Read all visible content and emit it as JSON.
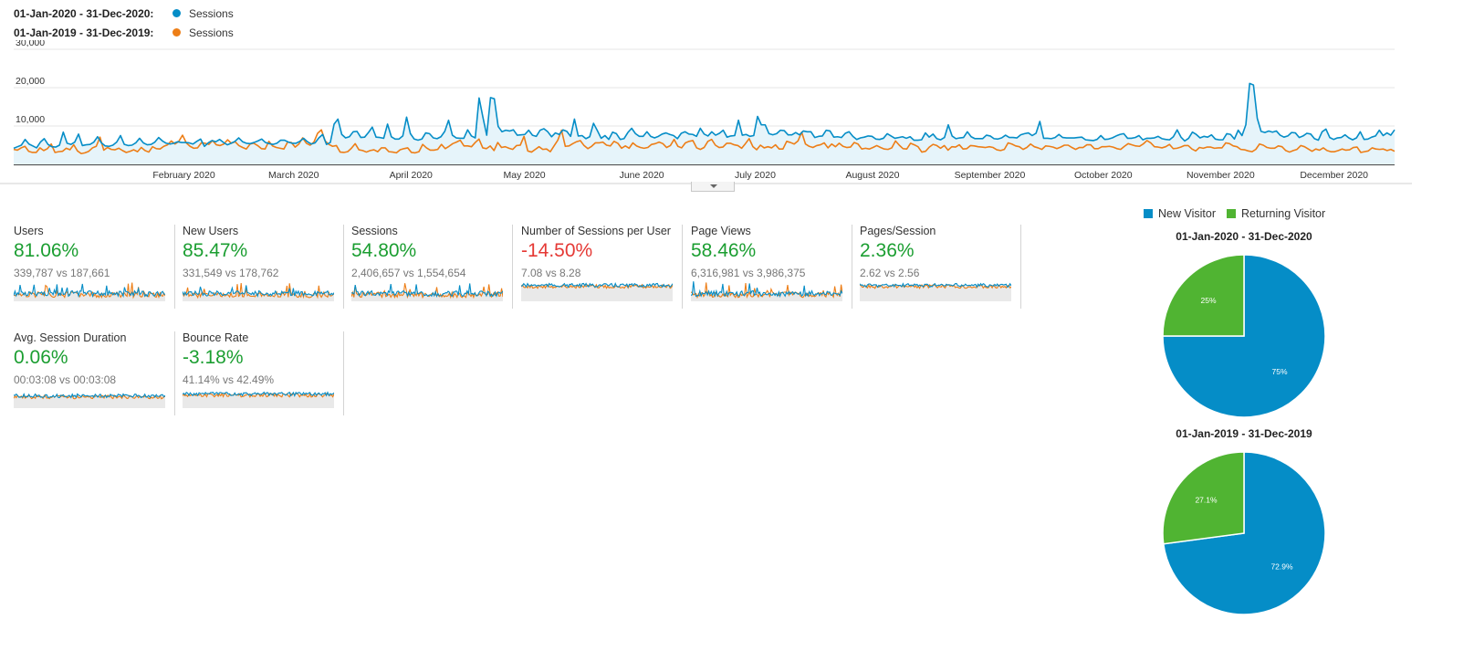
{
  "legend": [
    {
      "range": "01-Jan-2020 - 31-Dec-2020:",
      "metric": "Sessions",
      "color": "#058dc7"
    },
    {
      "range": "01-Jan-2019 - 31-Dec-2019:",
      "metric": "Sessions",
      "color": "#ed7e17"
    }
  ],
  "chart_data": {
    "type": "line",
    "title": "",
    "ylabel": "",
    "ylim": [
      0,
      30000
    ],
    "yticks": [
      "30,000",
      "20,000",
      "10,000"
    ],
    "x_tick_labels": [
      "February 2020",
      "March 2020",
      "April 2020",
      "May 2020",
      "June 2020",
      "July 2020",
      "August 2020",
      "September 2020",
      "October 2020",
      "November 2020",
      "December 2020"
    ],
    "series": [
      {
        "name": "01-Jan-2020 - 31-Dec-2020: Sessions",
        "color": "#058dc7",
        "values": [
          4200,
          4600,
          5000,
          6500,
          5300,
          4800,
          4300,
          5800,
          6700,
          5200,
          4600,
          4500,
          5000,
          8400,
          5500,
          5200,
          5800,
          7900,
          4900,
          5100,
          5200,
          5800,
          7200,
          5600,
          4800,
          4700,
          5000,
          5800,
          7500,
          5200,
          4900,
          5000,
          5600,
          6800,
          5600,
          5100,
          5200,
          5800,
          7000,
          6100,
          5500,
          5300,
          5500,
          5900,
          5700,
          5700,
          5600,
          5300,
          6000,
          6600,
          4700,
          5600,
          6200,
          5900,
          6500,
          5700,
          5100,
          5500,
          6000,
          6900,
          5900,
          5500,
          5400,
          5700,
          6100,
          6600,
          5700,
          5400,
          5200,
          5500,
          6300,
          6300,
          5800,
          5500,
          5500,
          6000,
          6800,
          5900,
          5300,
          5600,
          6900,
          7800,
          5200,
          5700,
          10500,
          11800,
          7800,
          6900,
          7200,
          8500,
          8600,
          7000,
          7100,
          8300,
          9700,
          7100,
          7000,
          6800,
          10500,
          7200,
          6600,
          6600,
          7400,
          12300,
          8000,
          6600,
          6300,
          6600,
          8200,
          8000,
          6900,
          6700,
          7200,
          8600,
          11500,
          7600,
          6900,
          6800,
          6800,
          9000,
          7400,
          6900,
          17300,
          12300,
          7600,
          17400,
          17100,
          9900,
          8500,
          8900,
          8700,
          9000,
          7600,
          7700,
          7800,
          8900,
          7600,
          7300,
          8900,
          9300,
          8500,
          7200,
          8200,
          7800,
          9000,
          8600,
          7300,
          11800,
          7400,
          7500,
          6700,
          7200,
          10700,
          8800,
          6800,
          7500,
          6500,
          8400,
          8000,
          6500,
          6700,
          8300,
          9400,
          8000,
          7300,
          7300,
          8500,
          7300,
          6900,
          7300,
          7900,
          8200,
          7800,
          7500,
          6700,
          8100,
          8500,
          7900,
          7800,
          7300,
          9400,
          7900,
          7400,
          8500,
          7600,
          8100,
          8900,
          7100,
          7400,
          7500,
          11500,
          7600,
          7800,
          7300,
          7500,
          12500,
          10300,
          10300,
          8000,
          7700,
          8000,
          8900,
          8800,
          7700,
          7700,
          8300,
          7700,
          8700,
          8500,
          8500,
          7000,
          7300,
          7400,
          8900,
          8700,
          7100,
          7200,
          7000,
          8100,
          8500,
          7300,
          6500,
          6900,
          7100,
          7400,
          7300,
          6600,
          6500,
          6800,
          8000,
          7400,
          6800,
          7000,
          7200,
          6800,
          7200,
          6300,
          6300,
          6400,
          8200,
          7100,
          7900,
          6700,
          6400,
          7000,
          10300,
          7400,
          6700,
          6900,
          7000,
          8500,
          7200,
          6700,
          6700,
          6700,
          7600,
          7400,
          6700,
          6600,
          6900,
          7600,
          7000,
          7000,
          6900,
          7700,
          8000,
          8200,
          7500,
          8100,
          11200,
          6800,
          6800,
          6700,
          7000,
          7800,
          7000,
          6900,
          6900,
          6900,
          7000,
          7100,
          6400,
          6300,
          6200,
          6500,
          7500,
          6500,
          6600,
          6900,
          7400,
          7800,
          8000,
          6800,
          6800,
          7000,
          7500,
          6400,
          6800,
          6800,
          6900,
          7300,
          6700,
          6500,
          6400,
          7200,
          9000,
          7100,
          6100,
          6800,
          8400,
          7800,
          6900,
          7300,
          7100,
          7700,
          6600,
          6400,
          6400,
          8000,
          7800,
          6600,
          8900,
          7500,
          10300,
          21100,
          20700,
          12000,
          8600,
          8300,
          8700,
          8400,
          8700,
          7600,
          7100,
          7400,
          8300,
          8200,
          7000,
          7400,
          8100,
          7900,
          6700,
          6300,
          8500,
          9200,
          7000,
          6500,
          6900,
          7000,
          7700,
          6900,
          6400,
          6900,
          8500,
          6500,
          6600,
          7100,
          7400,
          8900,
          7500,
          8200,
          7600,
          9000
        ]
      },
      {
        "name": "01-Jan-2019 - 31-Dec-2019: Sessions",
        "color": "#ed7e17",
        "values": [
          3900,
          3700,
          4300,
          4700,
          3400,
          3100,
          3100,
          4300,
          3600,
          4100,
          5300,
          3100,
          3300,
          3400,
          4200,
          3800,
          5100,
          3500,
          2800,
          3000,
          3400,
          4300,
          4700,
          7100,
          3700,
          4400,
          3900,
          3800,
          4200,
          3600,
          3100,
          3400,
          3800,
          3300,
          4400,
          3600,
          3200,
          4600,
          4100,
          4000,
          4700,
          5100,
          6100,
          5300,
          6000,
          7600,
          5600,
          4700,
          4200,
          4300,
          5600,
          5500,
          5200,
          6200,
          5100,
          4900,
          5300,
          6400,
          5500,
          5900,
          4900,
          4400,
          4000,
          5300,
          5500,
          4900,
          4100,
          4000,
          6000,
          4800,
          4400,
          4200,
          4000,
          5800,
          5700,
          4500,
          5300,
          6900,
          5500,
          5000,
          5800,
          8100,
          9000,
          6100,
          5200,
          4700,
          4900,
          3200,
          3100,
          3300,
          4200,
          5400,
          3800,
          3600,
          3200,
          3600,
          3800,
          3300,
          4300,
          4300,
          3300,
          3200,
          3000,
          3800,
          4100,
          4300,
          3100,
          3000,
          3300,
          5200,
          4300,
          3700,
          3700,
          3900,
          5200,
          4100,
          4700,
          5400,
          5800,
          6300,
          4800,
          4800,
          4600,
          5700,
          6600,
          4300,
          4100,
          4800,
          3600,
          5700,
          4400,
          4600,
          4200,
          3900,
          4900,
          5000,
          7300,
          3500,
          3200,
          3900,
          4600,
          3900,
          4000,
          3300,
          4800,
          6300,
          8900,
          4700,
          4800,
          5400,
          5900,
          6200,
          4900,
          4100,
          4700,
          5600,
          5600,
          5800,
          5000,
          4800,
          6000,
          5500,
          4200,
          4800,
          4200,
          5600,
          4800,
          4400,
          4200,
          4400,
          5200,
          5400,
          5800,
          5400,
          4400,
          4900,
          6500,
          4700,
          4300,
          5600,
          6000,
          6200,
          4300,
          3900,
          4400,
          6000,
          6500,
          5000,
          4400,
          4500,
          5500,
          5500,
          5100,
          4900,
          4200,
          5400,
          6700,
          4600,
          3800,
          5000,
          4300,
          4600,
          4300,
          5100,
          4000,
          4000,
          6000,
          5700,
          5300,
          6100,
          8400,
          5300,
          4700,
          4400,
          4900,
          5100,
          5600,
          4300,
          5300,
          4600,
          5500,
          4700,
          4400,
          4500,
          5700,
          5300,
          4000,
          4200,
          4000,
          4400,
          4900,
          4400,
          4000,
          3900,
          4300,
          6100,
          5000,
          4100,
          4000,
          5500,
          5100,
          4600,
          3200,
          3400,
          4500,
          5200,
          4900,
          4200,
          4900,
          3700,
          4600,
          4500,
          5100,
          4000,
          4100,
          4900,
          4800,
          4600,
          4500,
          4400,
          4600,
          4400,
          3800,
          3600,
          3900,
          5600,
          5300,
          4800,
          4600,
          3900,
          4400,
          5300,
          4600,
          4300,
          3900,
          4800,
          4700,
          4500,
          4100,
          4500,
          5000,
          5000,
          4400,
          3900,
          4400,
          4400,
          5100,
          5100,
          4100,
          4100,
          4600,
          4600,
          4700,
          4500,
          4100,
          3900,
          4700,
          5400,
          5100,
          4800,
          4700,
          5300,
          6200,
          5600,
          4600,
          4500,
          4300,
          4600,
          5200,
          4100,
          4200,
          4500,
          4900,
          4900,
          4000,
          3500,
          4400,
          4200,
          4500,
          4500,
          4200,
          4300,
          4300,
          5600,
          5400,
          4800,
          4600,
          3900,
          3800,
          3500,
          3300,
          3900,
          5300,
          5000,
          4400,
          4200,
          4200,
          4800,
          4600,
          3600,
          3200,
          3600,
          3900,
          4900,
          4600,
          4000,
          3400,
          4000,
          3700,
          4300,
          3600,
          3300,
          3300,
          3600,
          4000,
          3700,
          3800,
          4400,
          4500,
          3100,
          3300,
          3500,
          4300,
          4000,
          3900,
          4000,
          3600,
          3900,
          3400
        ]
      }
    ]
  },
  "metrics": [
    {
      "label": "Users",
      "value": "81.06%",
      "compare": "339,787 vs 187,661",
      "trend": "positive",
      "spark_profile": "spiky"
    },
    {
      "label": "New Users",
      "value": "85.47%",
      "compare": "331,549 vs 178,762",
      "trend": "positive",
      "spark_profile": "spiky"
    },
    {
      "label": "Sessions",
      "value": "54.80%",
      "compare": "2,406,657 vs 1,554,654",
      "trend": "positive",
      "spark_profile": "spiky"
    },
    {
      "label": "Number of Sessions per User",
      "value": "-14.50%",
      "compare": "7.08 vs 8.28",
      "trend": "negative",
      "spark_profile": "flat-high"
    },
    {
      "label": "Page Views",
      "value": "58.46%",
      "compare": "6,316,981 vs 3,986,375",
      "trend": "positive",
      "spark_profile": "spiky"
    },
    {
      "label": "Pages/Session",
      "value": "2.36%",
      "compare": "2.62 vs 2.56",
      "trend": "positive",
      "spark_profile": "flat-high"
    },
    {
      "label": "Avg. Session Duration",
      "value": "0.06%",
      "compare": "00:03:08 vs 00:03:08",
      "trend": "positive",
      "spark_profile": "noisy-mid"
    },
    {
      "label": "Bounce Rate",
      "value": "-3.18%",
      "compare": "41.14% vs 42.49%",
      "trend": "positive",
      "spark_profile": "noisy-high"
    }
  ],
  "pie_legend": [
    {
      "label": "New Visitor",
      "color": "#058dc7"
    },
    {
      "label": "Returning Visitor",
      "color": "#50b432"
    }
  ],
  "pies": [
    {
      "title": "01-Jan-2020 - 31-Dec-2020",
      "slices": [
        {
          "label": "New Visitor",
          "value": 75,
          "text": "75%",
          "color": "#058dc7"
        },
        {
          "label": "Returning Visitor",
          "value": 25,
          "text": "25%",
          "color": "#50b432"
        }
      ]
    },
    {
      "title": "01-Jan-2019 - 31-Dec-2019",
      "slices": [
        {
          "label": "New Visitor",
          "value": 72.9,
          "text": "72.9%",
          "color": "#058dc7"
        },
        {
          "label": "Returning Visitor",
          "value": 27.1,
          "text": "27.1%",
          "color": "#50b432"
        }
      ]
    }
  ]
}
